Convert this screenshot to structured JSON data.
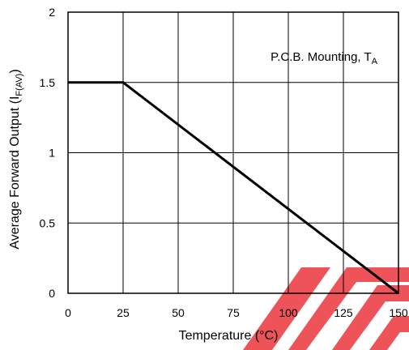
{
  "chart_data": {
    "type": "line",
    "title": "",
    "xlabel": "Temperature (°C)",
    "ylabel_main": "Average Forward Output (I",
    "ylabel_sub": "F(AV)",
    "ylabel_close": ")",
    "annotation_main": "P.C.B. Mounting, T",
    "annotation_sub": "A",
    "xlim": [
      0,
      150
    ],
    "ylim": [
      0,
      2
    ],
    "x_ticks": [
      0,
      25,
      50,
      75,
      100,
      125,
      150
    ],
    "y_ticks": [
      0,
      0.5,
      1,
      1.5,
      2
    ],
    "x_tick_labels": [
      "0",
      "25",
      "50",
      "75",
      "100",
      "125",
      "150"
    ],
    "y_tick_labels": [
      "0",
      "0.5",
      "1",
      "1.5",
      "2"
    ],
    "grid": true,
    "series": [
      {
        "x": [
          0,
          25,
          150
        ],
        "y": [
          1.5,
          1.5,
          0
        ]
      }
    ],
    "colors": {
      "line": "#000000",
      "grid": "#000000",
      "watermark": "#e8232a"
    }
  }
}
